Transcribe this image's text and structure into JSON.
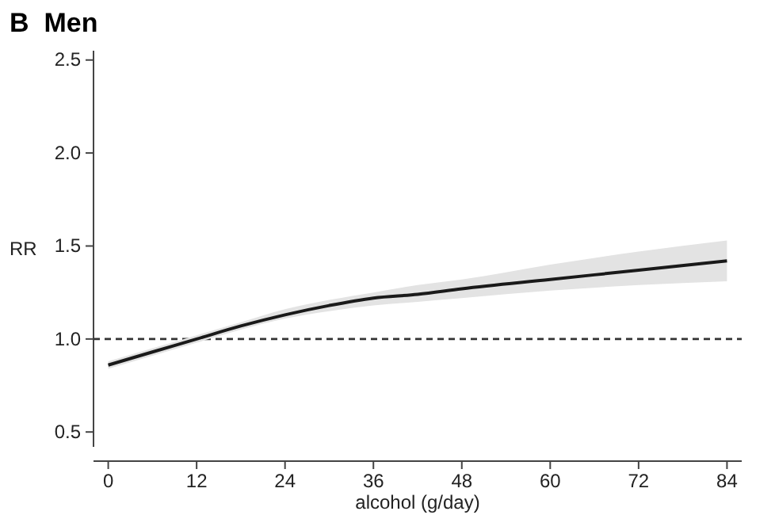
{
  "chart_data": {
    "type": "line",
    "title": "B  Men",
    "xlabel": "alcohol (g/day)",
    "ylabel": "RR",
    "xlim": [
      -2,
      86
    ],
    "xticks": [
      0,
      12,
      24,
      36,
      48,
      60,
      72,
      84
    ],
    "ylim": [
      0.42,
      2.55
    ],
    "yticks": [
      0.5,
      {
        "value": 1,
        "label": "1.0"
      },
      1.5,
      {
        "value": 2,
        "label": "2.0"
      },
      2.5
    ],
    "grid": false,
    "line_style": "solid",
    "marker": "none",
    "series": [
      {
        "color": "#1a1a1a",
        "x": [
          0,
          6,
          12,
          18,
          24,
          30,
          36,
          42,
          48,
          60,
          72,
          84
        ],
        "values": [
          0.86,
          0.93,
          1.0,
          1.07,
          1.13,
          1.18,
          1.22,
          1.24,
          1.27,
          1.32,
          1.37,
          1.42
        ],
        "lower": [
          0.84,
          0.91,
          0.98,
          1.05,
          1.11,
          1.15,
          1.18,
          1.2,
          1.22,
          1.26,
          1.29,
          1.31
        ],
        "upper": [
          0.88,
          0.95,
          1.02,
          1.09,
          1.16,
          1.21,
          1.25,
          1.29,
          1.32,
          1.4,
          1.47,
          1.53
        ]
      }
    ],
    "ref_lines": [
      {
        "axis": "y",
        "value": 1.0,
        "line_style": "dashed",
        "color": "#333333"
      }
    ]
  }
}
